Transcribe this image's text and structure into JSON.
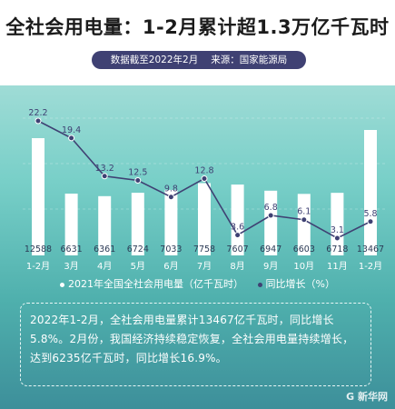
{
  "title": "全社会用电量：1-2月累计超1.3万亿千瓦时",
  "subtitle": {
    "date": "数据截至2022年2月",
    "source": "来源：国家能源局"
  },
  "chart_data": {
    "type": "bar+line",
    "categories": [
      "1-2月",
      "3月",
      "4月",
      "5月",
      "6月",
      "7月",
      "8月",
      "9月",
      "10月",
      "11月",
      "1-2月"
    ],
    "series": [
      {
        "name": "2021年全国全社会用电量（亿千瓦时）",
        "type": "bar",
        "values": [
          12588,
          6631,
          6361,
          6724,
          7033,
          7758,
          7607,
          6947,
          6603,
          6718,
          13467
        ]
      },
      {
        "name": "同比增长（%）",
        "type": "line",
        "values": [
          22.2,
          19.4,
          13.2,
          12.5,
          9.8,
          12.8,
          3.6,
          6.8,
          6.1,
          3.1,
          5.8
        ]
      }
    ],
    "colors": {
      "bar": "#ffffff",
      "line": "#3f4173",
      "point_fill": "#3f4173"
    }
  },
  "legend": {
    "bar_label": "2021年全国全社会用电量（亿千瓦时）",
    "line_label": "同比增长（%）"
  },
  "note": "2022年1-2月，全社会用电量累计13467亿千瓦时，同比增长5.8%。2月份，我国经济持续稳定恢复，全社会用电量持续增长，达到6235亿千瓦时，同比增长16.9%。",
  "watermark": "G 新华网"
}
